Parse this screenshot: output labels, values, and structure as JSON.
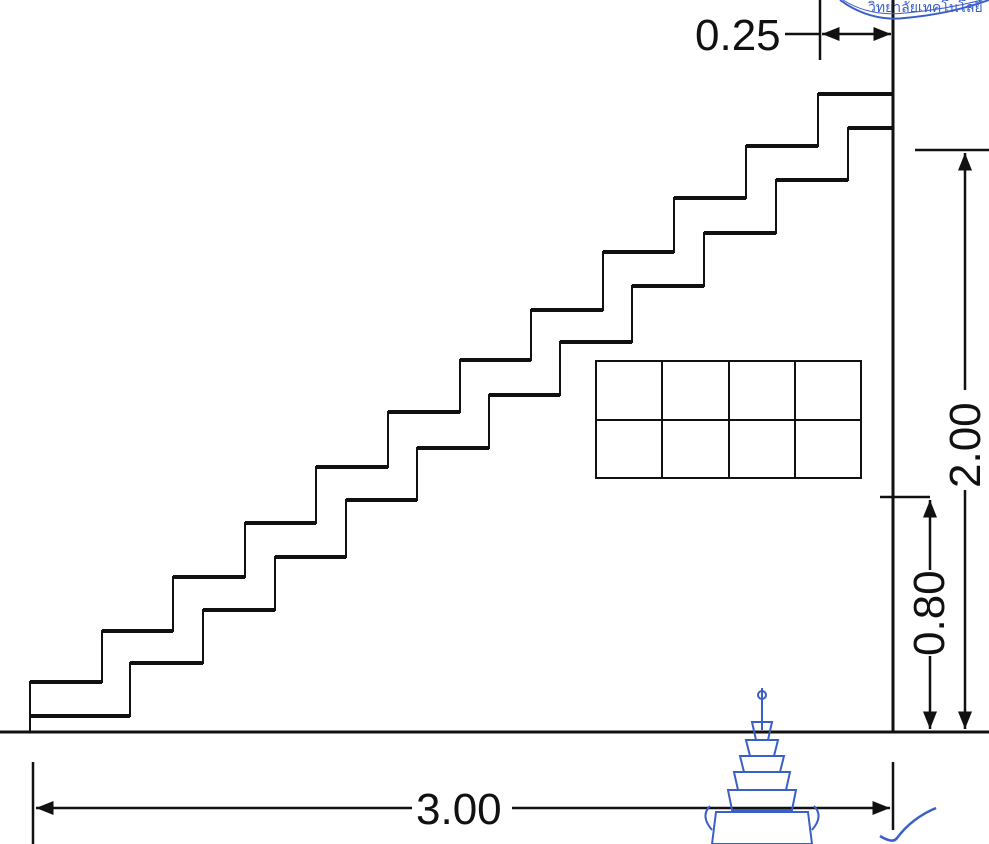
{
  "drawing": {
    "colors": {
      "line": "#111111",
      "stamp": "#3a5fc8"
    },
    "dimensions": {
      "tread_width": "0.25",
      "total_height": "2.00",
      "window_sill_height": "0.80",
      "total_length": "3.00"
    },
    "stamp": {
      "lettering": "วิทยาลัยเทคโนโลยี",
      "icon": "emblem-seal-icon"
    }
  }
}
